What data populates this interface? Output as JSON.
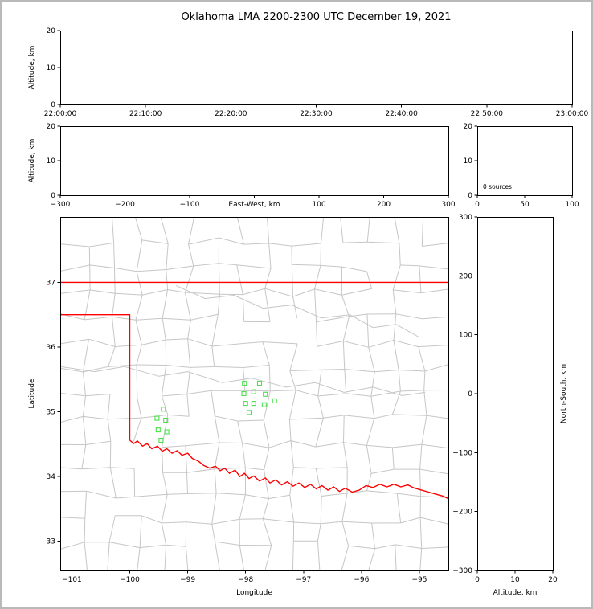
{
  "title": "Oklahoma LMA 2200-2300 UTC December 19, 2021",
  "colors": {
    "state_border": "#ff0000",
    "county_lines": "#c6c6c6",
    "sources": "#4be04b",
    "axes": "#000000",
    "frame_border": "#b9b9b9",
    "background": "#ffffff"
  },
  "chart_data": [
    {
      "id": "time_height",
      "type": "scatter",
      "xlabel": "",
      "ylabel": "Altitude, km",
      "x_tick_labels": [
        "22:00:00",
        "22:10:00",
        "22:20:00",
        "22:30:00",
        "22:40:00",
        "22:50:00",
        "23:00:00"
      ],
      "ylim": [
        0,
        20
      ],
      "yticks": [
        0,
        10,
        20
      ],
      "points": []
    },
    {
      "id": "ew_height",
      "type": "scatter",
      "xlabel": "East-West, km",
      "ylabel": "Altitude, km",
      "xlim": [
        -300,
        300
      ],
      "xticks": [
        -300,
        -200,
        -100,
        0,
        100,
        200,
        300
      ],
      "hidden_x_tick_label": 0,
      "ylim": [
        0,
        20
      ],
      "yticks": [
        0,
        10,
        20
      ],
      "points": []
    },
    {
      "id": "histogram",
      "type": "line",
      "annotation": "0 sources",
      "xlim": [
        0,
        100
      ],
      "xticks": [
        0,
        50,
        100
      ],
      "ylim": [
        0,
        20
      ],
      "yticks": [
        0,
        10,
        20
      ],
      "values": []
    },
    {
      "id": "plan_view",
      "type": "scatter",
      "xlabel": "Longitude",
      "ylabel": "Latitude",
      "xlim": [
        -101.2,
        -94.5
      ],
      "xticks": [
        -101,
        -100,
        -99,
        -98,
        -97,
        -96,
        -95
      ],
      "ylim": [
        32.55,
        38.01
      ],
      "yticks": [
        33,
        34,
        35,
        36,
        37
      ],
      "sources": [
        [
          -98.02,
          35.44
        ],
        [
          -97.76,
          35.44
        ],
        [
          -98.03,
          35.28
        ],
        [
          -97.86,
          35.31
        ],
        [
          -97.66,
          35.27
        ],
        [
          -98.0,
          35.13
        ],
        [
          -97.86,
          35.13
        ],
        [
          -97.68,
          35.11
        ],
        [
          -97.94,
          34.99
        ],
        [
          -97.5,
          35.17
        ],
        [
          -99.42,
          35.04
        ],
        [
          -99.53,
          34.9
        ],
        [
          -99.38,
          34.87
        ],
        [
          -99.51,
          34.72
        ],
        [
          -99.36,
          34.69
        ],
        [
          -99.46,
          34.56
        ]
      ],
      "state_border": [
        [
          [
            -101.2,
            37.0
          ],
          [
            -94.5,
            37.0
          ]
        ],
        [
          [
            -101.2,
            36.5
          ],
          [
            -100.0,
            36.5
          ],
          [
            -100.0,
            34.56
          ]
        ],
        [
          [
            -100.0,
            34.56
          ],
          [
            -99.93,
            34.51
          ],
          [
            -99.87,
            34.55
          ],
          [
            -99.78,
            34.47
          ],
          [
            -99.7,
            34.51
          ],
          [
            -99.62,
            34.43
          ],
          [
            -99.52,
            34.47
          ],
          [
            -99.44,
            34.39
          ],
          [
            -99.36,
            34.43
          ],
          [
            -99.27,
            34.36
          ],
          [
            -99.18,
            34.4
          ],
          [
            -99.1,
            34.33
          ],
          [
            -99.0,
            34.36
          ],
          [
            -98.92,
            34.28
          ],
          [
            -98.82,
            34.24
          ],
          [
            -98.72,
            34.17
          ],
          [
            -98.62,
            34.13
          ],
          [
            -98.52,
            34.16
          ],
          [
            -98.44,
            34.09
          ],
          [
            -98.36,
            34.13
          ],
          [
            -98.28,
            34.05
          ],
          [
            -98.18,
            34.1
          ],
          [
            -98.1,
            34.0
          ],
          [
            -98.02,
            34.05
          ],
          [
            -97.94,
            33.97
          ],
          [
            -97.86,
            34.01
          ],
          [
            -97.76,
            33.93
          ],
          [
            -97.66,
            33.98
          ],
          [
            -97.58,
            33.9
          ],
          [
            -97.48,
            33.95
          ],
          [
            -97.38,
            33.87
          ],
          [
            -97.28,
            33.92
          ],
          [
            -97.18,
            33.85
          ],
          [
            -97.08,
            33.9
          ],
          [
            -96.98,
            33.83
          ],
          [
            -96.88,
            33.88
          ],
          [
            -96.78,
            33.81
          ],
          [
            -96.68,
            33.86
          ],
          [
            -96.58,
            33.79
          ],
          [
            -96.48,
            33.84
          ],
          [
            -96.38,
            33.77
          ],
          [
            -96.28,
            33.82
          ],
          [
            -96.16,
            33.76
          ],
          [
            -96.04,
            33.79
          ],
          [
            -95.92,
            33.86
          ],
          [
            -95.8,
            33.83
          ],
          [
            -95.68,
            33.88
          ],
          [
            -95.56,
            33.84
          ],
          [
            -95.44,
            33.88
          ],
          [
            -95.32,
            33.84
          ],
          [
            -95.2,
            33.87
          ],
          [
            -95.08,
            33.82
          ],
          [
            -94.96,
            33.79
          ],
          [
            -94.84,
            33.76
          ],
          [
            -94.72,
            33.73
          ],
          [
            -94.6,
            33.7
          ],
          [
            -94.5,
            33.66
          ]
        ]
      ],
      "rivers": [
        [
          [
            -101.2,
            35.7
          ],
          [
            -100.6,
            35.62
          ],
          [
            -100.1,
            35.7
          ],
          [
            -99.5,
            35.55
          ],
          [
            -99.0,
            35.62
          ],
          [
            -98.4,
            35.45
          ],
          [
            -97.9,
            35.52
          ],
          [
            -97.3,
            35.38
          ],
          [
            -96.8,
            35.45
          ],
          [
            -96.3,
            35.3
          ],
          [
            -95.8,
            35.38
          ],
          [
            -95.3,
            35.25
          ],
          [
            -94.9,
            35.3
          ]
        ],
        [
          [
            -99.2,
            36.95
          ],
          [
            -98.7,
            36.75
          ],
          [
            -98.2,
            36.8
          ],
          [
            -97.7,
            36.6
          ],
          [
            -97.2,
            36.65
          ],
          [
            -96.7,
            36.45
          ],
          [
            -96.2,
            36.5
          ],
          [
            -95.8,
            36.3
          ],
          [
            -95.4,
            36.35
          ],
          [
            -95.0,
            36.15
          ]
        ]
      ]
    },
    {
      "id": "ns_height",
      "type": "scatter",
      "xlabel": "Altitude, km",
      "ylabel": "North-South, km",
      "xlim": [
        0,
        20
      ],
      "xticks": [
        0,
        10,
        20
      ],
      "ylim": [
        -300,
        300
      ],
      "yticks": [
        -300,
        -200,
        -100,
        0,
        100,
        200,
        300
      ],
      "points": []
    }
  ]
}
